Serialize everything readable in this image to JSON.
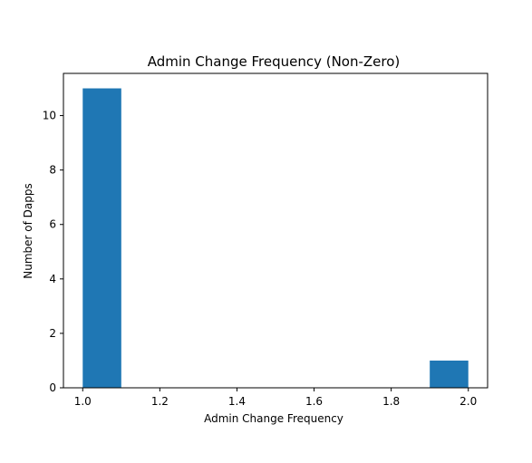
{
  "chart_data": {
    "type": "bar",
    "title": "Admin Change Frequency (Non-Zero)",
    "xlabel": "Admin Change Frequency",
    "ylabel": "Number of Dapps",
    "xlim": [
      0.95,
      2.05
    ],
    "ylim": [
      0,
      11.55
    ],
    "xticks": [
      1.0,
      1.2,
      1.4,
      1.6,
      1.8,
      2.0
    ],
    "xtick_labels": [
      "1.0",
      "1.2",
      "1.4",
      "1.6",
      "1.8",
      "2.0"
    ],
    "yticks": [
      0,
      2,
      4,
      6,
      8,
      10
    ],
    "ytick_labels": [
      "0",
      "2",
      "4",
      "6",
      "8",
      "10"
    ],
    "bin_edges": [
      1.0,
      1.1,
      1.2,
      1.3,
      1.4,
      1.5,
      1.6,
      1.7,
      1.8,
      1.9,
      2.0
    ],
    "counts": [
      11,
      0,
      0,
      0,
      0,
      0,
      0,
      0,
      0,
      1
    ],
    "bar_color": "#1f77b4",
    "grid": false,
    "legend": "none"
  }
}
